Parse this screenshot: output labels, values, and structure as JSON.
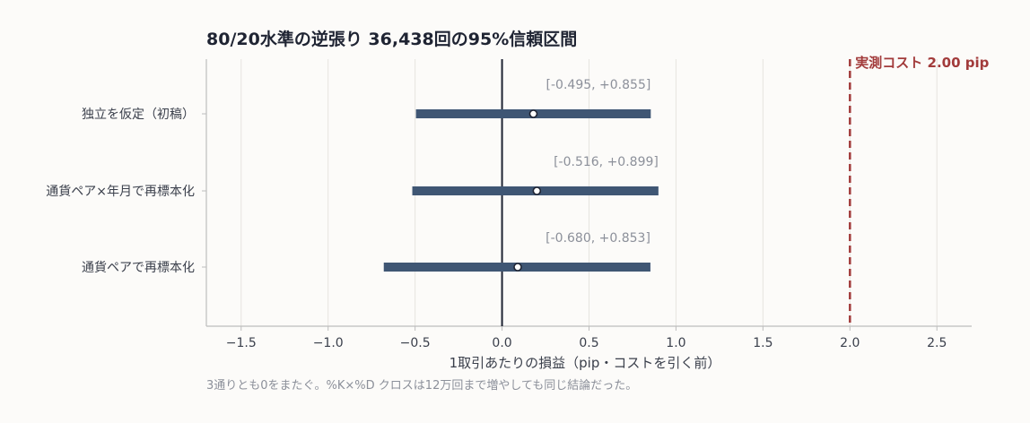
{
  "chart_data": {
    "type": "interval",
    "title": "80/20水準の逆張り 36,438回の95%信頼区間",
    "xlabel": "1取引あたりの損益（pip・コストを引く前）",
    "xlim": [
      -1.7,
      2.7
    ],
    "xticks": [
      "−1.5",
      "−1.0",
      "−0.5",
      "0.0",
      "0.5",
      "1.0",
      "1.5",
      "2.0",
      "2.5"
    ],
    "xtick_values": [
      -1.5,
      -1.0,
      -0.5,
      0.0,
      0.5,
      1.0,
      1.5,
      2.0,
      2.5
    ],
    "grid": "vertical",
    "zero_line": 0.0,
    "rows": [
      {
        "label": "独立を仮定（初稿）",
        "estimate": 0.18,
        "lower": -0.495,
        "upper": 0.855,
        "ci_text": "[-0.495, +0.855]"
      },
      {
        "label": "通貨ペア×年月で再標本化",
        "estimate": 0.2,
        "lower": -0.516,
        "upper": 0.899,
        "ci_text": "[-0.516, +0.899]"
      },
      {
        "label": "通貨ペアで再標本化",
        "estimate": 0.09,
        "lower": -0.68,
        "upper": 0.853,
        "ci_text": "[-0.680, +0.853]"
      }
    ],
    "reference_line": {
      "value": 2.0,
      "label": "実測コスト 2.00 pip",
      "color": "#a23b3b"
    },
    "bar_color": "#3f5674",
    "footnote": "3通りとも0をまたぐ。%K×%D クロスは12万回まで増やしても同じ結論だった。"
  }
}
